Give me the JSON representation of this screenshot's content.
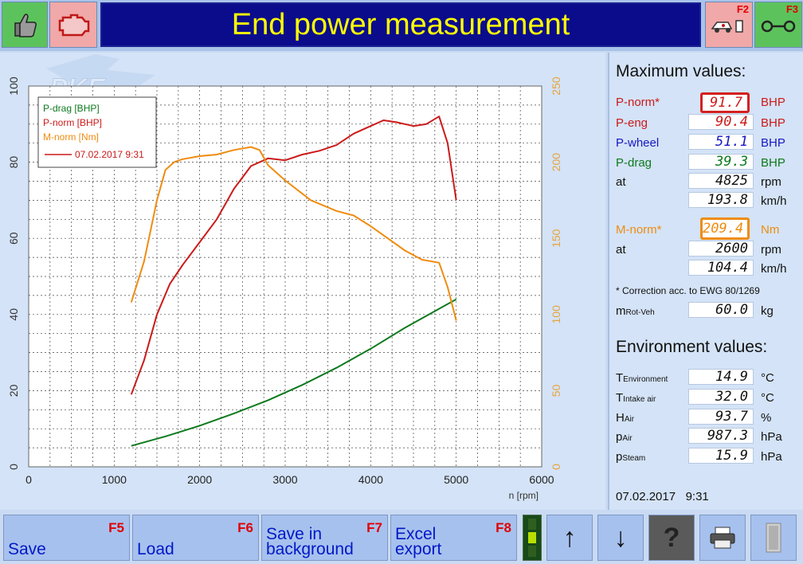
{
  "header": {
    "title": "End power measurement",
    "f2_key": "F2",
    "f3_key": "F3",
    "icons": [
      "thumbs-up-icon",
      "engine-icon",
      "car-lift-icon",
      "trailer-icon"
    ]
  },
  "watermark": "PKE",
  "chart": {
    "xlabel": "n [rpm]",
    "legend": {
      "entries": [
        "P-drag [BHP]",
        "P-norm [BHP]",
        "M-norm [Nm]"
      ],
      "date_line": "07.02.2017 9:31"
    },
    "colors": {
      "p_drag": "#0e7a1e",
      "p_norm": "#cc1a1a",
      "m_norm": "#ef8c10",
      "left_axis": "#333333",
      "right_axis": "#e8a33b"
    }
  },
  "chart_data": {
    "type": "line",
    "xlabel": "n [rpm]",
    "xlim": [
      0,
      6000
    ],
    "ylim_left": [
      0,
      100
    ],
    "ylim_right": [
      0,
      250
    ],
    "x_ticks": [
      "0",
      "1000",
      "2000",
      "3000",
      "4000",
      "5000",
      "6000"
    ],
    "y_left_ticks": [
      "0",
      "20",
      "40",
      "60",
      "80",
      "100"
    ],
    "y_right_ticks": [
      "0",
      "50",
      "100",
      "150",
      "200",
      "250"
    ],
    "grid": true,
    "legend_position": "top-left",
    "series": [
      {
        "name": "P-drag [BHP]",
        "axis": "left",
        "x": [
          1200,
          1600,
          2000,
          2400,
          2800,
          3200,
          3600,
          4000,
          4400,
          4800,
          5000
        ],
        "y": [
          5.5,
          8,
          10.8,
          14,
          17.5,
          21.5,
          26,
          31,
          36.5,
          41.5,
          44
        ]
      },
      {
        "name": "P-norm [BHP]",
        "axis": "left",
        "x": [
          1200,
          1350,
          1500,
          1650,
          1800,
          2000,
          2200,
          2400,
          2600,
          2800,
          3000,
          3200,
          3400,
          3600,
          3800,
          4000,
          4150,
          4300,
          4500,
          4650,
          4800,
          4900,
          5000
        ],
        "y": [
          19,
          28,
          40,
          48,
          53,
          59,
          65,
          73,
          79,
          81,
          80.5,
          82,
          83,
          84.5,
          87.5,
          89.5,
          91,
          90.5,
          89.5,
          90,
          92,
          85,
          70
        ]
      },
      {
        "name": "M-norm [Nm]",
        "axis": "right",
        "x": [
          1200,
          1350,
          1500,
          1600,
          1700,
          1800,
          2000,
          2200,
          2400,
          2600,
          2700,
          2800,
          3000,
          3300,
          3600,
          3800,
          4000,
          4200,
          4400,
          4600,
          4800,
          4900,
          5000
        ],
        "y": [
          108,
          135,
          175,
          195,
          200,
          202,
          204,
          205,
          208,
          210,
          208,
          198,
          188,
          175,
          168,
          165,
          158,
          150,
          142,
          136,
          134,
          118,
          96
        ]
      }
    ]
  },
  "max_values": {
    "heading": "Maximum values:",
    "rows": [
      {
        "label": "P-norm*",
        "value": "91.7",
        "unit": "BHP"
      },
      {
        "label": "P-eng",
        "value": "90.4",
        "unit": "BHP"
      },
      {
        "label": "P-wheel",
        "value": "51.1",
        "unit": "BHP"
      },
      {
        "label": "P-drag",
        "value": "39.3",
        "unit": "BHP"
      },
      {
        "label": "at",
        "value": "4825",
        "unit": "rpm"
      },
      {
        "label": "",
        "value": "193.8",
        "unit": "km/h"
      }
    ],
    "m_rows": [
      {
        "label": "M-norm*",
        "value": "209.4",
        "unit": "Nm"
      },
      {
        "label": "at",
        "value": "2600",
        "unit": "rpm"
      },
      {
        "label": "",
        "value": "104.4",
        "unit": "km/h"
      }
    ],
    "correction_note": "* Correction acc. to EWG 80/1269",
    "m_rot": {
      "label": "m",
      "sub": "Rot-Veh",
      "value": "60.0",
      "unit": "kg"
    }
  },
  "environment": {
    "heading": "Environment values:",
    "rows": [
      {
        "label": "T",
        "sub": "Environment",
        "value": "14.9",
        "unit": "°C"
      },
      {
        "label": "T",
        "sub": "Intake air",
        "value": "32.0",
        "unit": "°C"
      },
      {
        "label": "H",
        "sub": "Air",
        "value": "93.7",
        "unit": "%"
      },
      {
        "label": "p",
        "sub": "Air",
        "value": "987.3",
        "unit": "hPa"
      },
      {
        "label": "p",
        "sub": "Steam",
        "value": "15.9",
        "unit": "hPa"
      }
    ],
    "timestamp": "07.02.2017   9:31"
  },
  "footer": {
    "save": {
      "label": "Save",
      "key": "F5"
    },
    "load": {
      "label": "Load",
      "key": "F6"
    },
    "save_bg": {
      "label": "Save in background",
      "key": "F7"
    },
    "excel": {
      "label": "Excel export",
      "key": "F8"
    },
    "icons": [
      "signal-lights-icon",
      "arrow-up-icon",
      "arrow-down-icon",
      "help-icon",
      "printer-icon",
      "door-icon"
    ]
  }
}
